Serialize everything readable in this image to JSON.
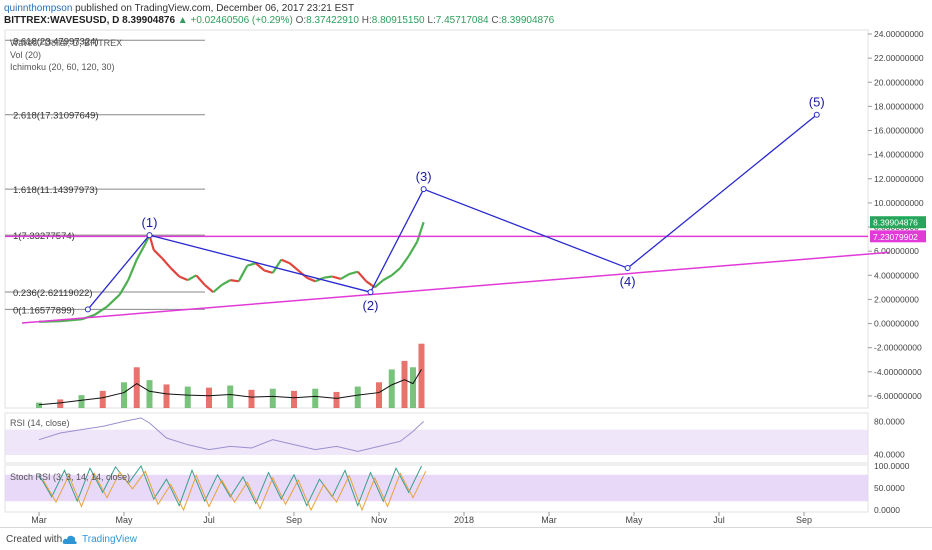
{
  "header": {
    "author": "quinnthompson",
    "published_text": "published on TradingView.com, December 06, 2017 23:21 EST",
    "symbol": "BITTREX:WAVESUSD, D",
    "last": "8.39904876",
    "change_arrow": "▲",
    "change": "+0.02460506 (+0.29%)",
    "o_label": "O:",
    "o_val": "8.37422910",
    "h_label": "H:",
    "h_val": "8.80915150",
    "l_label": "L:",
    "l_val": "7.45717084",
    "c_label": "C:",
    "c_val": "8.39904876"
  },
  "indicators": {
    "series_title": "Waves / Dollar, D, BITTREX",
    "vol": "Vol (20)",
    "ichimoku": "Ichimoku (20, 60, 120, 30)",
    "rsi": "RSI (14, close)",
    "stoch": "Stoch RSI (3, 3, 14, 14, close)"
  },
  "footer": {
    "created_with": "Created with",
    "brand": "TradingView"
  },
  "colors": {
    "fib": "#888888",
    "wave": "#2a2ad0",
    "trend": "#e23ad8",
    "candle_up": "#4caf50",
    "candle_down": "#e0443c",
    "price_badge": "#26a65b",
    "level_badge": "#e23ad8",
    "rsi_band": "#e8dcf6",
    "stoch_band": "#e4d0f6",
    "osc_line": "#9c8fd0"
  },
  "chart_data": {
    "type": "line",
    "title": "",
    "price_axis": {
      "ylim": [
        -7,
        24
      ],
      "ticks": [
        "24.00000000",
        "22.00000000",
        "20.00000000",
        "18.00000000",
        "16.00000000",
        "14.00000000",
        "12.00000000",
        "10.00000000",
        "8.00000000",
        "6.00000000",
        "4.00000000",
        "2.00000000",
        "0.00000000",
        "-2.00000000",
        "-4.00000000",
        "-6.00000000"
      ],
      "tick_values": [
        24,
        22,
        20,
        18,
        16,
        14,
        12,
        10,
        8,
        6,
        4,
        2,
        0,
        -2,
        -4,
        -6
      ]
    },
    "rsi_axis": {
      "ticks": [
        "80.0000",
        "40.0000"
      ],
      "tick_values": [
        80,
        40
      ]
    },
    "stoch_axis": {
      "ticks": [
        "100.0000",
        "50.0000",
        "0.0000"
      ],
      "tick_values": [
        100,
        50,
        0
      ]
    },
    "time_axis": {
      "labels": [
        "Mar",
        "May",
        "Jul",
        "Sep",
        "Nov",
        "2018",
        "Mar",
        "May",
        "Jul",
        "Sep"
      ],
      "positions_months": [
        2,
        4,
        6,
        8,
        10,
        12,
        14,
        16,
        18,
        20
      ]
    },
    "price_badges": [
      {
        "label": "8.39904876",
        "value": 8.399,
        "color": "#26a65b"
      },
      {
        "label": "7.23079902",
        "value": 7.231,
        "color": "#e23ad8"
      }
    ],
    "fib_levels": [
      {
        "label": "3.618(23.47997324)",
        "value": 23.48
      },
      {
        "label": "2.618(17.31097649)",
        "value": 17.31
      },
      {
        "label": "1.618(11.14397973)",
        "value": 11.14
      },
      {
        "label": "1(7.33277574)",
        "value": 7.33
      },
      {
        "label": "0.236(2.62119022)",
        "value": 2.62
      },
      {
        "label": "0(1.16577899)",
        "value": 1.17
      }
    ],
    "elliott_waves": {
      "x_months": [
        3.15,
        4.6,
        9.8,
        11.05,
        15.85,
        20.3
      ],
      "y": [
        1.17,
        7.33,
        2.6,
        11.14,
        4.6,
        17.31
      ],
      "labels": [
        "",
        "(1)",
        "(2)",
        "(3)",
        "(4)",
        "(5)"
      ]
    },
    "horizontal_level": 7.23,
    "trendline": {
      "x_months": [
        1.6,
        22.0
      ],
      "y": [
        0.05,
        5.9
      ]
    },
    "series": [
      {
        "name": "WAVESUSD",
        "x_months": [
          2.0,
          2.5,
          3.0,
          3.3,
          3.6,
          3.9,
          4.1,
          4.3,
          4.5,
          4.6,
          4.7,
          4.9,
          5.1,
          5.3,
          5.5,
          5.7,
          5.9,
          6.1,
          6.3,
          6.5,
          6.7,
          6.9,
          7.1,
          7.3,
          7.5,
          7.7,
          7.9,
          8.1,
          8.3,
          8.5,
          8.7,
          8.9,
          9.1,
          9.3,
          9.5,
          9.7,
          9.9,
          10.1,
          10.3,
          10.5,
          10.7,
          10.9,
          11.05
        ],
        "y": [
          0.15,
          0.2,
          0.35,
          0.7,
          1.4,
          2.4,
          3.6,
          5.3,
          6.6,
          7.33,
          6.1,
          5.4,
          4.6,
          3.9,
          3.6,
          4.0,
          3.2,
          2.6,
          3.2,
          3.6,
          3.5,
          4.8,
          5.0,
          4.4,
          4.2,
          5.3,
          5.0,
          4.4,
          3.8,
          3.5,
          3.8,
          3.9,
          3.7,
          4.1,
          4.3,
          3.5,
          3.0,
          3.6,
          4.0,
          4.6,
          5.6,
          6.8,
          8.4
        ]
      }
    ],
    "volume": {
      "x_months": [
        2.0,
        2.5,
        3.0,
        3.5,
        4.0,
        4.3,
        4.6,
        5.0,
        5.5,
        6.0,
        6.5,
        7.0,
        7.5,
        8.0,
        8.5,
        9.0,
        9.5,
        10.0,
        10.3,
        10.6,
        10.8,
        11.0
      ],
      "values": [
        0.5,
        0.8,
        1.2,
        1.6,
        2.4,
        3.8,
        2.6,
        2.2,
        2.0,
        1.9,
        2.1,
        1.7,
        1.8,
        1.6,
        1.8,
        1.5,
        2.0,
        2.4,
        3.6,
        4.4,
        3.8,
        6.0
      ],
      "scale_max": 7
    },
    "rsi": {
      "x_months": [
        2.0,
        2.5,
        3.0,
        3.5,
        4.0,
        4.4,
        4.6,
        5.0,
        5.5,
        6.0,
        6.5,
        7.0,
        7.5,
        8.0,
        8.5,
        9.0,
        9.5,
        10.0,
        10.5,
        10.8,
        11.05
      ],
      "values": [
        58,
        66,
        70,
        74,
        80,
        84,
        78,
        60,
        52,
        46,
        50,
        48,
        58,
        52,
        46,
        50,
        44,
        50,
        56,
        68,
        80
      ]
    },
    "stoch_rsi": {
      "x_months": [
        2.0,
        2.3,
        2.6,
        2.9,
        3.2,
        3.5,
        3.8,
        4.1,
        4.4,
        4.7,
        5.0,
        5.3,
        5.6,
        5.9,
        6.2,
        6.5,
        6.8,
        7.1,
        7.4,
        7.7,
        8.0,
        8.3,
        8.6,
        8.9,
        9.2,
        9.5,
        9.8,
        10.1,
        10.4,
        10.7,
        11.0
      ],
      "values": [
        80,
        30,
        90,
        20,
        95,
        40,
        98,
        60,
        100,
        25,
        70,
        10,
        90,
        20,
        80,
        30,
        75,
        15,
        85,
        25,
        80,
        10,
        70,
        30,
        90,
        10,
        85,
        20,
        95,
        40,
        100
      ]
    }
  }
}
